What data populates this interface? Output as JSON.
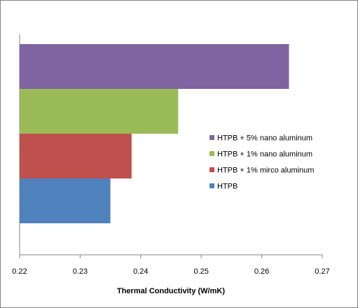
{
  "chart_data": {
    "type": "bar",
    "orientation": "horizontal",
    "title": "",
    "xlabel": "Thermal Conductivity  (W/mK)",
    "ylabel": "",
    "xlim": [
      0.22,
      0.27
    ],
    "xticks": [
      0.22,
      0.23,
      0.24,
      0.25,
      0.26,
      0.27
    ],
    "xtick_labels": [
      "0.22",
      "0.23",
      "0.24",
      "0.25",
      "0.26",
      "0.27"
    ],
    "grid": false,
    "legend_position": "right",
    "series": [
      {
        "name": "HTPB",
        "value": 0.235,
        "color": "#4F81BD"
      },
      {
        "name": "HTPB + 1% mirco aluminum",
        "value": 0.2385,
        "color": "#C0504D"
      },
      {
        "name": "HTPB + 1% nano aluminum",
        "value": 0.2462,
        "color": "#9BBB59"
      },
      {
        "name": "HTPB + 5% nano aluminum",
        "value": 0.2645,
        "color": "#8064A2"
      }
    ]
  }
}
